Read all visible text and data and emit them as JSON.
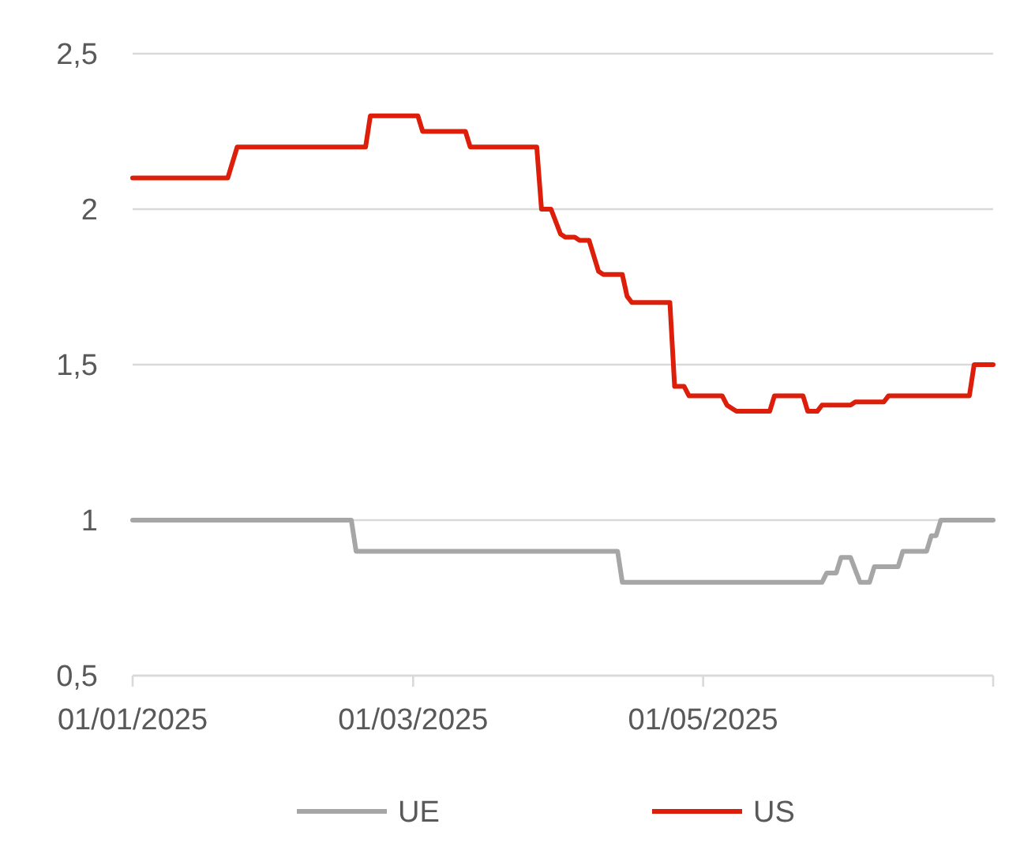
{
  "chart_data": {
    "type": "line",
    "xlim": [
      "2025-01-01",
      "2025-07-01"
    ],
    "xticks": [
      {
        "value": "2025-01-01",
        "label": "01/01/2025"
      },
      {
        "value": "2025-03-01",
        "label": "01/03/2025"
      },
      {
        "value": "2025-05-01",
        "label": "01/05/2025"
      },
      {
        "value": "2025-07-01",
        "label": null
      }
    ],
    "ylim": [
      0.5,
      2.5
    ],
    "yticks": [
      {
        "value": 0.5,
        "label": "0,5"
      },
      1,
      {
        "value": 1.5,
        "label": "1,5"
      },
      2,
      {
        "value": 2.5,
        "label": "2,5"
      }
    ],
    "grid": "y",
    "legend": "bottom",
    "marker": "none",
    "line_style": "solid",
    "series": [
      {
        "name": "UE",
        "color": "#a6a6a6",
        "x": [
          "2025-01-01",
          "2025-02-16",
          "2025-02-17",
          "2025-04-13",
          "2025-04-14",
          "2025-05-26",
          "2025-05-27",
          "2025-05-29",
          "2025-05-30",
          "2025-06-01",
          "2025-06-03",
          "2025-06-05",
          "2025-06-06",
          "2025-06-11",
          "2025-06-12",
          "2025-06-17",
          "2025-06-18",
          "2025-06-19",
          "2025-06-20",
          "2025-07-01"
        ],
        "values": [
          1,
          1,
          0.9,
          0.9,
          0.8,
          0.8,
          0.83,
          0.83,
          0.88,
          0.88,
          0.8,
          0.8,
          0.85,
          0.85,
          0.9,
          0.9,
          0.95,
          0.95,
          1,
          1
        ]
      },
      {
        "name": "US",
        "color": "#dc1e0a",
        "x": [
          "2025-01-01",
          "2025-01-21",
          "2025-01-23",
          "2025-02-19",
          "2025-02-20",
          "2025-03-02",
          "2025-03-03",
          "2025-03-12",
          "2025-03-13",
          "2025-03-27",
          "2025-03-28",
          "2025-03-30",
          "2025-04-01",
          "2025-04-02",
          "2025-04-04",
          "2025-04-05",
          "2025-04-07",
          "2025-04-09",
          "2025-04-10",
          "2025-04-14",
          "2025-04-15",
          "2025-04-16",
          "2025-04-24",
          "2025-04-25",
          "2025-04-27",
          "2025-04-28",
          "2025-05-05",
          "2025-05-06",
          "2025-05-07",
          "2025-05-08",
          "2025-05-15",
          "2025-05-16",
          "2025-05-22",
          "2025-05-23",
          "2025-05-25",
          "2025-05-26",
          "2025-06-01",
          "2025-06-02",
          "2025-06-08",
          "2025-06-09",
          "2025-06-26",
          "2025-06-27",
          "2025-07-01"
        ],
        "values": [
          2.1,
          2.1,
          2.2,
          2.2,
          2.3,
          2.3,
          2.25,
          2.25,
          2.2,
          2.2,
          2,
          2,
          1.92,
          1.91,
          1.91,
          1.9,
          1.9,
          1.8,
          1.79,
          1.79,
          1.72,
          1.7,
          1.7,
          1.43,
          1.43,
          1.4,
          1.4,
          1.37,
          1.36,
          1.35,
          1.35,
          1.4,
          1.4,
          1.35,
          1.35,
          1.37,
          1.37,
          1.38,
          1.38,
          1.4,
          1.4,
          1.5,
          1.5
        ]
      }
    ]
  }
}
